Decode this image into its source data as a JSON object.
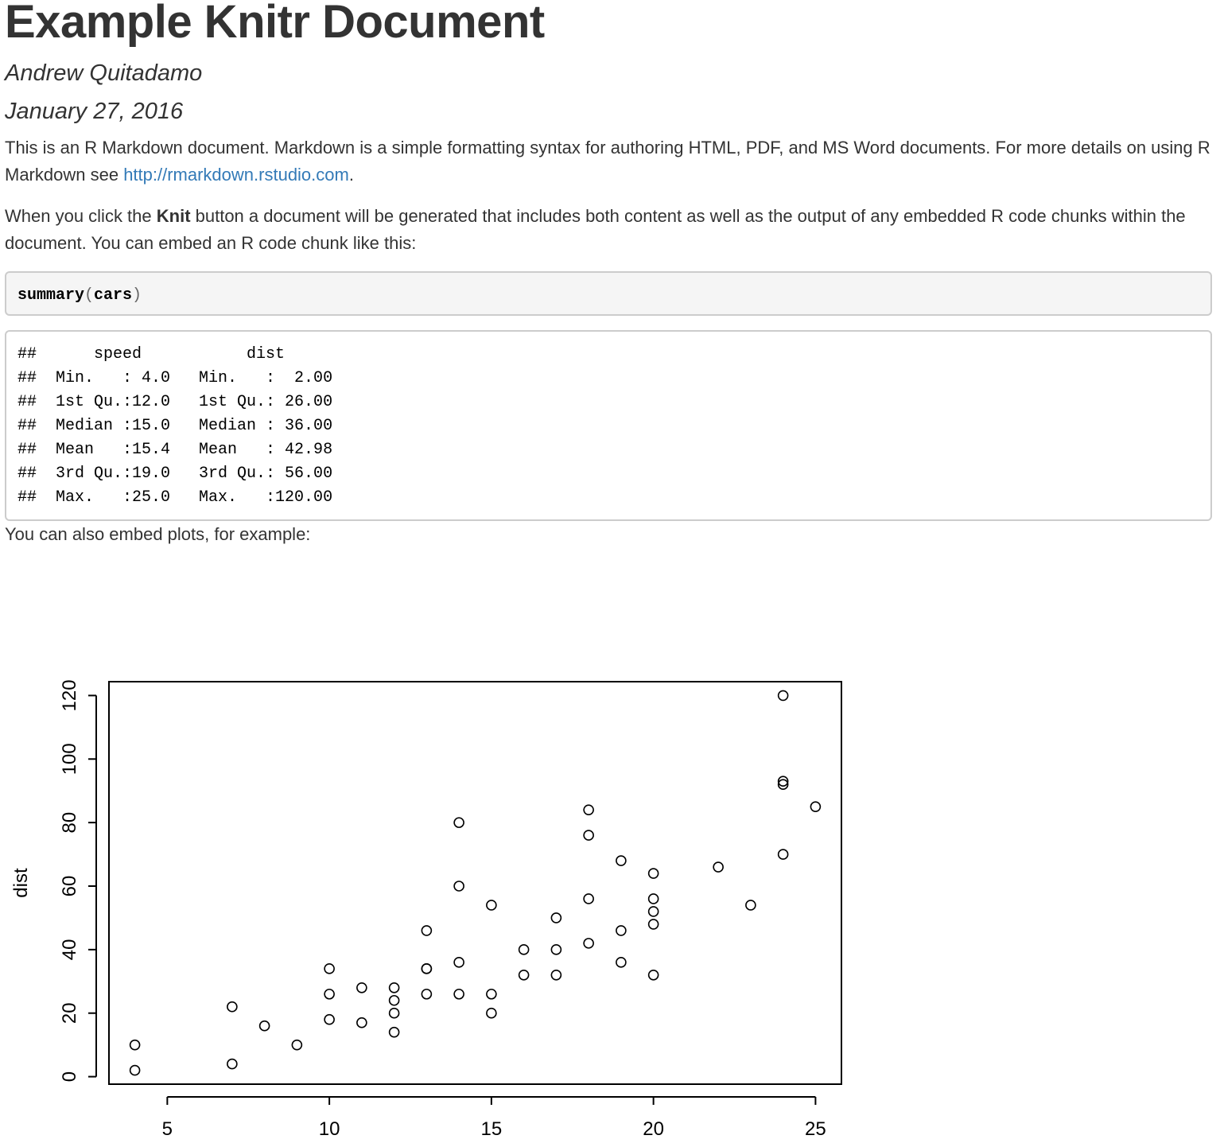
{
  "document": {
    "title": "Example Knitr Document",
    "author": "Andrew Quitadamo",
    "date": "January 27, 2016",
    "para1_text": "This is an R Markdown document. Markdown is a simple formatting syntax for authoring HTML, PDF, and MS Word documents. For more details on using R Markdown see ",
    "para1_link": "http://rmarkdown.rstudio.com",
    "para1_end": ".",
    "para2_before": "When you click the ",
    "para2_bold": "Knit",
    "para2_after": " button a document will be generated that includes both content as well as the output of any embedded R code chunks within the document. You can embed an R code chunk like this:",
    "code": {
      "fn": "summary",
      "open": "(",
      "arg": "cars",
      "close": ")"
    },
    "output_lines": [
      "##      speed           dist       ",
      "##  Min.   : 4.0   Min.   :  2.00  ",
      "##  1st Qu.:12.0   1st Qu.: 26.00  ",
      "##  Median :15.0   Median : 36.00  ",
      "##  Mean   :15.4   Mean   : 42.98  ",
      "##  3rd Qu.:19.0   3rd Qu.: 56.00  ",
      "##  Max.   :25.0   Max.   :120.00  "
    ],
    "para3": "You can also embed plots, for example:"
  },
  "chart_data": {
    "type": "scatter",
    "title": "",
    "xlabel": "",
    "ylabel": "dist",
    "xlim": [
      3.2,
      25.8
    ],
    "ylim": [
      -2.36,
      124.36
    ],
    "xticks": [
      5,
      10,
      15,
      20,
      25
    ],
    "yticks": [
      0,
      20,
      40,
      60,
      80,
      100,
      120
    ],
    "grid": false,
    "points": [
      [
        4,
        2
      ],
      [
        4,
        10
      ],
      [
        7,
        4
      ],
      [
        7,
        22
      ],
      [
        8,
        16
      ],
      [
        9,
        10
      ],
      [
        10,
        18
      ],
      [
        10,
        26
      ],
      [
        10,
        34
      ],
      [
        11,
        17
      ],
      [
        11,
        28
      ],
      [
        12,
        14
      ],
      [
        12,
        20
      ],
      [
        12,
        24
      ],
      [
        12,
        28
      ],
      [
        13,
        26
      ],
      [
        13,
        34
      ],
      [
        13,
        34
      ],
      [
        13,
        46
      ],
      [
        14,
        26
      ],
      [
        14,
        36
      ],
      [
        14,
        60
      ],
      [
        14,
        80
      ],
      [
        15,
        20
      ],
      [
        15,
        26
      ],
      [
        15,
        54
      ],
      [
        16,
        32
      ],
      [
        16,
        40
      ],
      [
        17,
        32
      ],
      [
        17,
        40
      ],
      [
        17,
        50
      ],
      [
        18,
        42
      ],
      [
        18,
        56
      ],
      [
        18,
        76
      ],
      [
        18,
        84
      ],
      [
        19,
        36
      ],
      [
        19,
        46
      ],
      [
        19,
        68
      ],
      [
        20,
        32
      ],
      [
        20,
        48
      ],
      [
        20,
        52
      ],
      [
        20,
        56
      ],
      [
        20,
        64
      ],
      [
        22,
        66
      ],
      [
        23,
        54
      ],
      [
        24,
        70
      ],
      [
        24,
        92
      ],
      [
        24,
        93
      ],
      [
        24,
        120
      ],
      [
        25,
        85
      ]
    ]
  }
}
